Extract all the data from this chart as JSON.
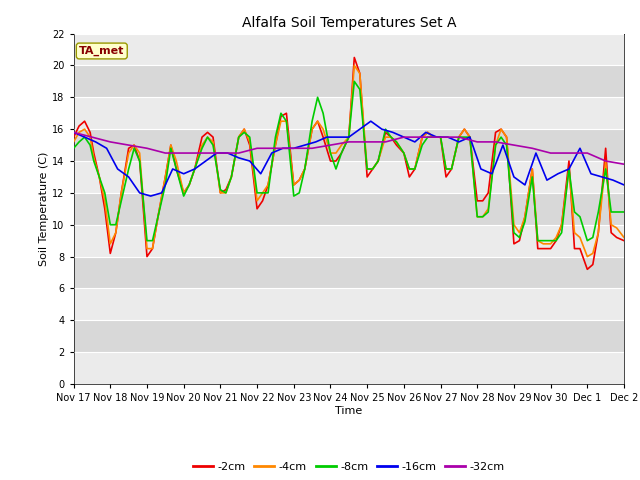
{
  "title": "Alfalfa Soil Temperatures Set A",
  "xlabel": "Time",
  "ylabel": "Soil Temperature (C)",
  "ylim": [
    0,
    22
  ],
  "yticks": [
    0,
    2,
    4,
    6,
    8,
    10,
    12,
    14,
    16,
    18,
    20,
    22
  ],
  "xlim": [
    0,
    15
  ],
  "xtick_labels": [
    "Nov 17",
    "Nov 18",
    "Nov 19",
    "Nov 20",
    "Nov 21",
    "Nov 22",
    "Nov 23",
    "Nov 24",
    "Nov 25",
    "Nov 26",
    "Nov 27",
    "Nov 28",
    "Nov 29",
    "Nov 30",
    "Dec 1",
    "Dec 2"
  ],
  "xtick_positions": [
    0,
    1,
    2,
    3,
    4,
    5,
    6,
    7,
    8,
    9,
    10,
    11,
    12,
    13,
    14,
    15
  ],
  "fig_bg": "#ffffff",
  "plot_bg_light": "#ebebeb",
  "plot_bg_dark": "#d8d8d8",
  "annotation_text": "TA_met",
  "annotation_color": "#880000",
  "annotation_bg": "#ffffcc",
  "annotation_border": "#999900",
  "series": {
    "neg2cm": {
      "color": "#ee0000",
      "label": "-2cm",
      "linewidth": 1.2
    },
    "neg4cm": {
      "color": "#ff8800",
      "label": "-4cm",
      "linewidth": 1.2
    },
    "neg8cm": {
      "color": "#00cc00",
      "label": "-8cm",
      "linewidth": 1.2
    },
    "neg16cm": {
      "color": "#0000ee",
      "label": "-16cm",
      "linewidth": 1.2
    },
    "neg32cm": {
      "color": "#aa00aa",
      "label": "-32cm",
      "linewidth": 1.2
    }
  },
  "x_neg2cm": [
    0.0,
    0.15,
    0.3,
    0.45,
    0.55,
    0.7,
    0.85,
    1.0,
    1.15,
    1.3,
    1.5,
    1.65,
    1.8,
    2.0,
    2.15,
    2.3,
    2.5,
    2.65,
    2.8,
    3.0,
    3.15,
    3.3,
    3.5,
    3.65,
    3.8,
    4.0,
    4.15,
    4.3,
    4.5,
    4.65,
    4.8,
    5.0,
    5.15,
    5.3,
    5.5,
    5.65,
    5.8,
    6.0,
    6.15,
    6.3,
    6.5,
    6.65,
    6.8,
    7.0,
    7.15,
    7.3,
    7.5,
    7.65,
    7.8,
    8.0,
    8.15,
    8.3,
    8.5,
    8.65,
    8.8,
    9.0,
    9.15,
    9.3,
    9.5,
    9.65,
    9.8,
    10.0,
    10.15,
    10.3,
    10.5,
    10.65,
    10.8,
    11.0,
    11.15,
    11.3,
    11.5,
    11.65,
    11.8,
    12.0,
    12.15,
    12.3,
    12.5,
    12.65,
    12.8,
    13.0,
    13.15,
    13.3,
    13.5,
    13.65,
    13.8,
    14.0,
    14.15,
    14.3,
    14.5,
    14.65,
    14.8,
    15.0
  ],
  "y_neg2cm": [
    15.5,
    16.2,
    16.5,
    15.8,
    14.5,
    13.0,
    11.0,
    8.2,
    9.5,
    12.0,
    14.8,
    15.0,
    14.0,
    8.0,
    8.5,
    10.5,
    13.0,
    15.0,
    13.5,
    12.0,
    12.5,
    13.5,
    15.5,
    15.8,
    15.5,
    12.0,
    12.2,
    13.0,
    15.5,
    16.0,
    15.0,
    11.0,
    11.5,
    12.5,
    15.0,
    16.8,
    17.0,
    12.5,
    12.8,
    13.5,
    16.0,
    16.5,
    15.5,
    14.0,
    14.0,
    14.5,
    15.5,
    20.5,
    19.5,
    13.0,
    13.5,
    14.0,
    15.8,
    15.5,
    15.0,
    14.5,
    13.0,
    13.5,
    15.5,
    15.8,
    15.5,
    15.5,
    13.0,
    13.5,
    15.5,
    16.0,
    15.5,
    11.5,
    11.5,
    12.0,
    15.8,
    16.0,
    15.5,
    8.8,
    9.0,
    10.5,
    13.5,
    8.5,
    8.5,
    8.5,
    9.0,
    10.0,
    14.0,
    8.5,
    8.5,
    7.2,
    7.5,
    9.5,
    14.8,
    9.5,
    9.2,
    9.0
  ],
  "x_neg4cm": [
    0.0,
    0.15,
    0.3,
    0.45,
    0.55,
    0.7,
    0.85,
    1.0,
    1.15,
    1.3,
    1.5,
    1.65,
    1.8,
    2.0,
    2.15,
    2.3,
    2.5,
    2.65,
    2.8,
    3.0,
    3.15,
    3.3,
    3.5,
    3.65,
    3.8,
    4.0,
    4.15,
    4.3,
    4.5,
    4.65,
    4.8,
    5.0,
    5.15,
    5.3,
    5.5,
    5.65,
    5.8,
    6.0,
    6.15,
    6.3,
    6.5,
    6.65,
    6.8,
    7.0,
    7.15,
    7.3,
    7.5,
    7.65,
    7.8,
    8.0,
    8.15,
    8.3,
    8.5,
    8.65,
    8.8,
    9.0,
    9.15,
    9.3,
    9.5,
    9.65,
    9.8,
    10.0,
    10.15,
    10.3,
    10.5,
    10.65,
    10.8,
    11.0,
    11.15,
    11.3,
    11.5,
    11.65,
    11.8,
    12.0,
    12.15,
    12.3,
    12.5,
    12.65,
    12.8,
    13.0,
    13.15,
    13.3,
    13.5,
    13.65,
    13.8,
    14.0,
    14.15,
    14.3,
    14.5,
    14.65,
    14.8,
    15.0
  ],
  "y_neg4cm": [
    15.2,
    15.8,
    16.0,
    15.5,
    14.2,
    13.0,
    11.5,
    8.8,
    9.5,
    12.0,
    14.5,
    15.0,
    14.5,
    8.5,
    8.5,
    10.5,
    13.0,
    15.0,
    14.0,
    12.0,
    12.5,
    13.5,
    15.0,
    15.5,
    15.2,
    12.0,
    12.0,
    13.0,
    15.5,
    16.0,
    15.2,
    11.5,
    12.0,
    12.5,
    15.0,
    16.5,
    16.5,
    12.5,
    12.8,
    13.5,
    16.0,
    16.5,
    16.0,
    14.5,
    14.5,
    15.0,
    15.5,
    20.0,
    19.5,
    13.5,
    13.5,
    14.0,
    15.5,
    15.5,
    15.2,
    14.5,
    13.5,
    13.5,
    15.5,
    15.8,
    15.5,
    15.5,
    13.5,
    13.5,
    15.5,
    16.0,
    15.5,
    10.5,
    10.5,
    11.0,
    15.0,
    16.0,
    15.5,
    10.0,
    9.5,
    10.5,
    13.5,
    9.0,
    8.8,
    8.8,
    9.2,
    10.0,
    13.5,
    9.5,
    9.2,
    8.0,
    8.2,
    9.5,
    14.0,
    10.0,
    9.8,
    9.2
  ],
  "x_neg8cm": [
    0.0,
    0.15,
    0.3,
    0.45,
    0.55,
    0.7,
    0.85,
    1.0,
    1.15,
    1.3,
    1.5,
    1.65,
    1.8,
    2.0,
    2.15,
    2.3,
    2.5,
    2.65,
    2.8,
    3.0,
    3.15,
    3.3,
    3.5,
    3.65,
    3.8,
    4.0,
    4.15,
    4.3,
    4.5,
    4.65,
    4.8,
    5.0,
    5.15,
    5.3,
    5.5,
    5.65,
    5.8,
    6.0,
    6.15,
    6.3,
    6.5,
    6.65,
    6.8,
    7.0,
    7.15,
    7.3,
    7.5,
    7.65,
    7.8,
    8.0,
    8.15,
    8.3,
    8.5,
    8.65,
    8.8,
    9.0,
    9.15,
    9.3,
    9.5,
    9.65,
    9.8,
    10.0,
    10.15,
    10.3,
    10.5,
    10.65,
    10.8,
    11.0,
    11.15,
    11.3,
    11.5,
    11.65,
    11.8,
    12.0,
    12.15,
    12.3,
    12.5,
    12.65,
    12.8,
    13.0,
    13.15,
    13.3,
    13.5,
    13.65,
    13.8,
    14.0,
    14.15,
    14.3,
    14.5,
    14.65,
    14.8,
    15.0
  ],
  "y_neg8cm": [
    14.8,
    15.2,
    15.5,
    15.0,
    14.0,
    13.0,
    12.0,
    10.0,
    10.0,
    11.5,
    13.5,
    14.8,
    14.0,
    9.0,
    9.0,
    10.5,
    12.5,
    14.8,
    13.5,
    11.8,
    12.5,
    13.5,
    14.8,
    15.5,
    15.0,
    12.2,
    12.0,
    13.0,
    15.5,
    15.8,
    15.5,
    12.0,
    12.0,
    12.0,
    15.5,
    17.0,
    16.5,
    11.8,
    12.0,
    13.5,
    16.5,
    18.0,
    17.0,
    14.5,
    13.5,
    14.5,
    15.5,
    19.0,
    18.5,
    13.5,
    13.5,
    14.0,
    16.0,
    15.5,
    15.2,
    14.5,
    13.5,
    13.5,
    15.0,
    15.5,
    15.5,
    15.5,
    13.5,
    13.5,
    15.5,
    15.5,
    15.5,
    10.5,
    10.5,
    10.8,
    15.0,
    15.5,
    15.0,
    9.5,
    9.2,
    10.2,
    13.0,
    9.0,
    9.0,
    9.0,
    9.0,
    9.5,
    13.5,
    10.8,
    10.5,
    9.0,
    9.2,
    10.8,
    13.5,
    10.8,
    10.8,
    10.8
  ],
  "x_neg16cm": [
    0.0,
    0.3,
    0.6,
    0.9,
    1.2,
    1.5,
    1.8,
    2.1,
    2.4,
    2.7,
    3.0,
    3.3,
    3.6,
    3.9,
    4.2,
    4.5,
    4.8,
    5.1,
    5.4,
    5.7,
    6.0,
    6.3,
    6.6,
    6.9,
    7.2,
    7.5,
    7.8,
    8.1,
    8.4,
    8.7,
    9.0,
    9.3,
    9.6,
    9.9,
    10.2,
    10.5,
    10.8,
    11.1,
    11.4,
    11.7,
    12.0,
    12.3,
    12.6,
    12.9,
    13.2,
    13.5,
    13.8,
    14.1,
    14.4,
    14.7,
    15.0
  ],
  "y_neg16cm": [
    15.8,
    15.5,
    15.2,
    14.8,
    13.5,
    13.0,
    12.0,
    11.8,
    12.0,
    13.5,
    13.2,
    13.5,
    14.0,
    14.5,
    14.5,
    14.2,
    14.0,
    13.2,
    14.5,
    14.8,
    14.8,
    15.0,
    15.2,
    15.5,
    15.5,
    15.5,
    16.0,
    16.5,
    16.0,
    15.8,
    15.5,
    15.2,
    15.8,
    15.5,
    15.5,
    15.2,
    15.5,
    13.5,
    13.2,
    15.0,
    13.0,
    12.5,
    14.5,
    12.8,
    13.2,
    13.5,
    14.8,
    13.2,
    13.0,
    12.8,
    12.5
  ],
  "x_neg32cm": [
    0.0,
    0.5,
    1.0,
    1.5,
    2.0,
    2.5,
    3.0,
    3.5,
    4.0,
    4.5,
    5.0,
    5.5,
    6.0,
    6.5,
    7.0,
    7.5,
    8.0,
    8.5,
    9.0,
    9.5,
    10.0,
    10.5,
    11.0,
    11.5,
    12.0,
    12.5,
    13.0,
    13.5,
    14.0,
    14.5,
    15.0
  ],
  "y_neg32cm": [
    15.8,
    15.5,
    15.2,
    15.0,
    14.8,
    14.5,
    14.5,
    14.5,
    14.5,
    14.5,
    14.8,
    14.8,
    14.8,
    14.8,
    15.0,
    15.2,
    15.2,
    15.2,
    15.5,
    15.5,
    15.5,
    15.5,
    15.2,
    15.2,
    15.0,
    14.8,
    14.5,
    14.5,
    14.5,
    14.0,
    13.8
  ]
}
